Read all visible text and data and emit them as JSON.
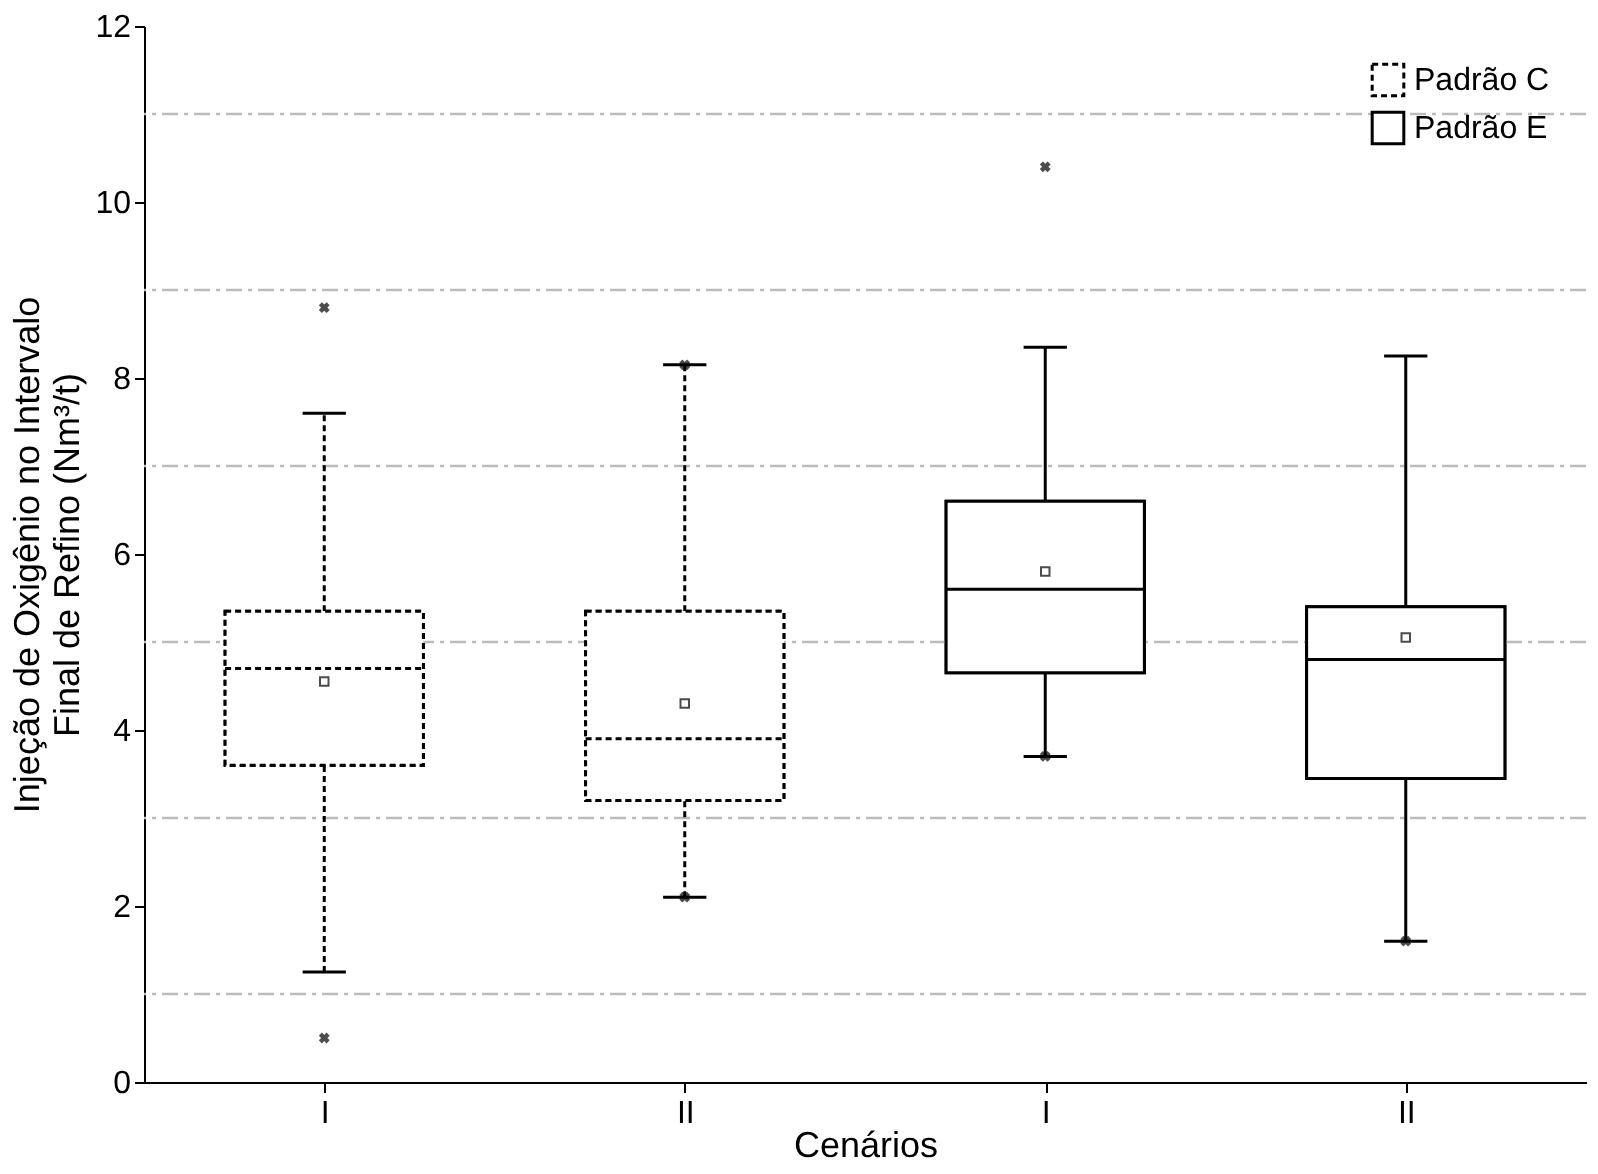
{
  "chart_data": {
    "type": "box",
    "xlabel": "Cenários",
    "ylabel": "Injeção de Oxigênio no Intervalo\nFinal de Refino (Nm³/t)",
    "categories": [
      "I",
      "II",
      "I",
      "II"
    ],
    "series": [
      {
        "name": "Padrão C",
        "color": "#000000",
        "line_style": "dashed",
        "boxes": [
          {
            "low": 1.25,
            "q1": 3.6,
            "median": 4.7,
            "q3": 5.35,
            "high": 7.6,
            "mean": 4.55,
            "outliers": [
              0.5,
              8.8
            ]
          },
          {
            "low": 2.1,
            "q1": 3.2,
            "median": 3.9,
            "q3": 5.35,
            "high": 8.15,
            "mean": 4.3,
            "outliers": [
              2.1,
              8.15
            ]
          },
          null,
          null
        ]
      },
      {
        "name": "Padrão E",
        "color": "#000000",
        "line_style": "solid",
        "boxes": [
          null,
          null,
          {
            "low": 3.7,
            "q1": 4.65,
            "median": 5.6,
            "q3": 6.6,
            "high": 8.35,
            "mean": 5.8,
            "outliers": [
              3.7,
              10.4
            ]
          },
          {
            "low": 1.6,
            "q1": 3.45,
            "median": 4.8,
            "q3": 5.4,
            "high": 8.25,
            "mean": 5.05,
            "outliers": [
              1.6
            ]
          }
        ]
      }
    ],
    "ylim": [
      0,
      12
    ],
    "yticks": [
      0,
      2,
      4,
      6,
      8,
      10,
      12
    ],
    "ref_lines": [
      {
        "axis": "y",
        "value": 1,
        "color": "#bbbbbb",
        "line_style": "dashdot"
      },
      {
        "axis": "y",
        "value": 3,
        "color": "#bbbbbb",
        "line_style": "dashdot"
      },
      {
        "axis": "y",
        "value": 5,
        "color": "#bbbbbb",
        "line_style": "dashdot"
      },
      {
        "axis": "y",
        "value": 7,
        "color": "#bbbbbb",
        "line_style": "dashdot"
      },
      {
        "axis": "y",
        "value": 9,
        "color": "#bbbbbb",
        "line_style": "dashdot"
      },
      {
        "axis": "y",
        "value": 11,
        "color": "#bbbbbb",
        "line_style": "dashdot"
      }
    ],
    "grid": false,
    "legend": "top right"
  }
}
